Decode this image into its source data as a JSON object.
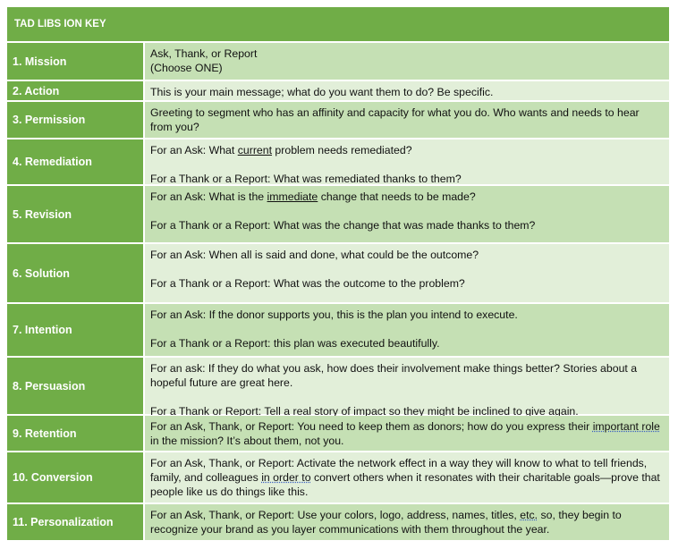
{
  "title": "TAD LIBS ION KEY",
  "colors": {
    "header": "#70AD47",
    "row_dark": "#C5E0B4",
    "row_light": "#E2EFD9"
  },
  "rows": [
    {
      "label": "1.  Mission",
      "paragraphs": [
        [
          {
            "t": "Ask, Thank, or Report"
          }
        ],
        [
          {
            "t": "(Choose ONE)"
          }
        ]
      ],
      "tight": true
    },
    {
      "label": "2.  Action",
      "paragraphs": [
        [
          {
            "t": "This is your main message; what do you want them to do? Be specific."
          }
        ]
      ]
    },
    {
      "label": "3.  Permission",
      "paragraphs": [
        [
          {
            "t": "Greeting to segment who has an affinity and capacity for what you do. Who wants and needs to hear from you?"
          }
        ]
      ]
    },
    {
      "label": "4.  Remediation",
      "paragraphs": [
        [
          {
            "t": "For an Ask: What "
          },
          {
            "t": "current",
            "u": "solid"
          },
          {
            "t": " problem needs remediated?"
          }
        ],
        [
          {
            "t": "For a Thank or a Report: What was remediated thanks to them?"
          }
        ]
      ]
    },
    {
      "label": "5.  Revision",
      "paragraphs": [
        [
          {
            "t": "For an Ask: What is the "
          },
          {
            "t": "immediate",
            "u": "solid"
          },
          {
            "t": " change that needs to be made?"
          }
        ],
        [
          {
            "t": "For a Thank or a Report: What was the change that was made thanks to them?"
          }
        ]
      ]
    },
    {
      "label": "6.  Solution",
      "paragraphs": [
        [
          {
            "t": "For an Ask: When all is said and done, what could be the outcome?"
          }
        ],
        [
          {
            "t": "For a Thank or a Report: What was the outcome to the problem?"
          }
        ]
      ]
    },
    {
      "label": "7.  Intention",
      "paragraphs": [
        [
          {
            "t": "For an Ask: If the donor supports you, this is the plan you intend to execute."
          }
        ],
        [
          {
            "t": "For a Thank or a Report: this plan was executed beautifully."
          }
        ]
      ]
    },
    {
      "label": "8.  Persuasion",
      "paragraphs": [
        [
          {
            "t": "For an ask:  If they do what you ask, how does their involvement make things better? Stories about a hopeful future are great here."
          }
        ],
        [
          {
            "t": "For a Thank or Report:  Tell a real story of impact so they might be inclined to give again."
          }
        ]
      ]
    },
    {
      "label": "9.  Retention",
      "paragraphs": [
        [
          {
            "t": "For an Ask, Thank, or Report:  You need to keep them as donors; how do you express their "
          },
          {
            "t": "important role",
            "u": "dotted"
          },
          {
            "t": " in the mission? It’s about them, not you."
          }
        ]
      ]
    },
    {
      "label": "10.  Conversion",
      "paragraphs": [
        [
          {
            "t": "For an Ask, Thank, or Report:  Activate the network effect in a way they will know to what to tell friends, family, and colleagues "
          },
          {
            "t": "in order to",
            "u": "dotted"
          },
          {
            "t": " convert others when it resonates with their charitable goals—prove that people like us do things like this."
          }
        ]
      ]
    },
    {
      "label": "11.  Personalization",
      "paragraphs": [
        [
          {
            "t": "For an Ask, Thank, or Report:  Use your colors, logo, address, names, titles, "
          },
          {
            "t": "etc.",
            "u": "dotted"
          },
          {
            "t": " so, they begin to recognize your brand as you layer communications with them throughout the year."
          }
        ]
      ]
    }
  ]
}
